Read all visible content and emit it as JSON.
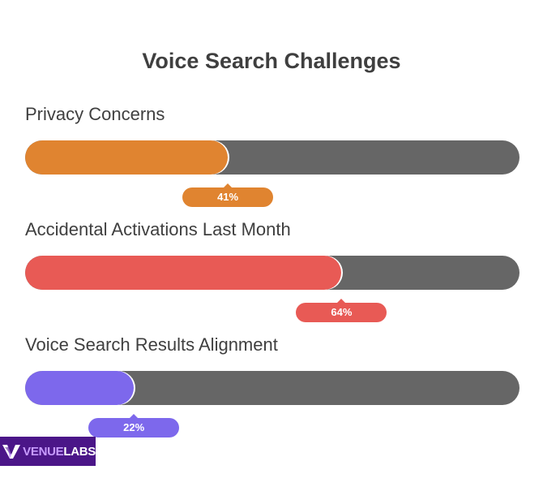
{
  "chart_data": {
    "type": "bar",
    "orientation": "horizontal",
    "title": "Voice Search Challenges",
    "unit": "%",
    "xlim": [
      0,
      100
    ],
    "grid": false,
    "categories": [
      "Privacy Concerns",
      "Accidental Activations Last Month",
      "Voice Search Results Alignment"
    ],
    "values": [
      41,
      64,
      22
    ],
    "data_labels": [
      "41%",
      "64%",
      "22%"
    ],
    "colors": [
      "#e08430",
      "#e85a55",
      "#7d68ec"
    ],
    "track_color": "#666666"
  },
  "logo": {
    "text_part_a": "VENUE",
    "text_part_b": "LABS",
    "icon": "venuelabs-v-icon",
    "background": "#4b1688"
  }
}
